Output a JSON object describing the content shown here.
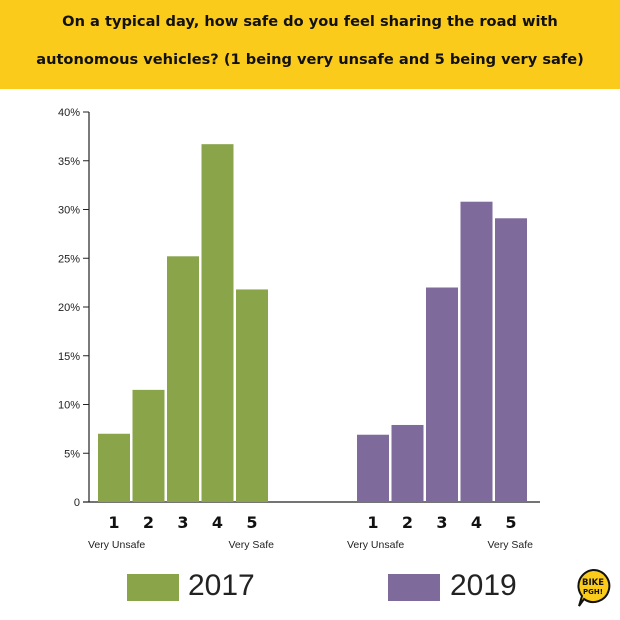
{
  "title": {
    "line1": "On a typical day, how safe do you feel sharing the road with",
    "line2": "autonomous vehicles? (1 being very unsafe and 5 being very safe)"
  },
  "colors": {
    "header_bg": "#fbcb1c",
    "series_2017": "#8aa44a",
    "series_2019": "#7f6a9c"
  },
  "chart_data": {
    "type": "bar",
    "ylim": [
      0,
      40
    ],
    "yticks": [
      "0",
      "5%",
      "10%",
      "15%",
      "20%",
      "25%",
      "30%",
      "35%",
      "40%"
    ],
    "ytick_values": [
      0,
      5,
      10,
      15,
      20,
      25,
      30,
      35,
      40
    ],
    "categories": [
      "1",
      "2",
      "3",
      "4",
      "5"
    ],
    "scale_labels": {
      "low": "Very Unsafe",
      "high": "Very Safe"
    },
    "series": [
      {
        "name": "2017",
        "values": [
          7.0,
          11.5,
          25.2,
          36.7,
          21.8
        ]
      },
      {
        "name": "2019",
        "values": [
          6.9,
          7.9,
          22.0,
          30.8,
          29.1
        ]
      }
    ]
  },
  "legend": [
    {
      "label": "2017",
      "color": "#8aa44a"
    },
    {
      "label": "2019",
      "color": "#7f6a9c"
    }
  ],
  "logo": {
    "line1": "BIKE",
    "line2": "PGH!"
  }
}
